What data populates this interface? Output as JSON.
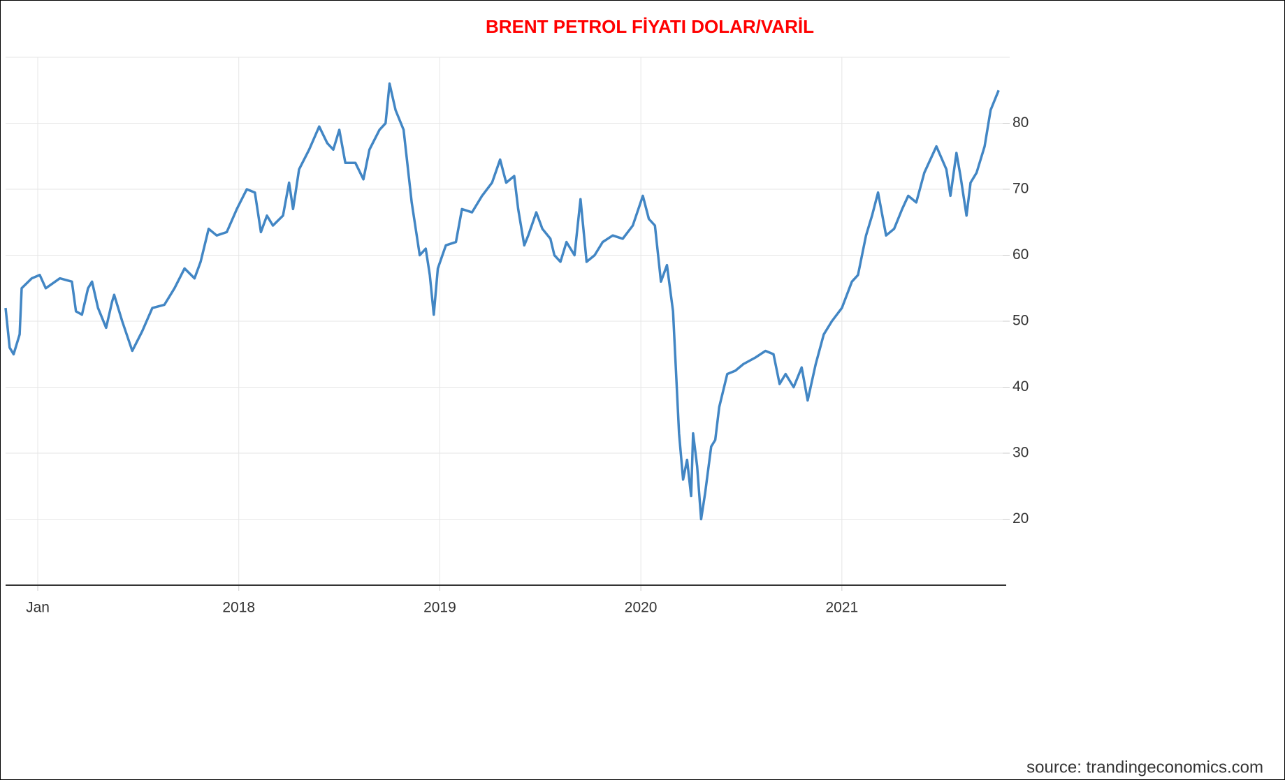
{
  "chart_data": {
    "type": "line",
    "title": "BRENT PETROL FİYATI DOLAR/VARİL",
    "source": "source: trandingeconomics.com",
    "x": [
      2016.84,
      2016.86,
      2016.88,
      2016.91,
      2016.92,
      2016.97,
      2017.01,
      2017.04,
      2017.11,
      2017.17,
      2017.19,
      2017.22,
      2017.25,
      2017.27,
      2017.3,
      2017.34,
      2017.37,
      2017.38,
      2017.42,
      2017.47,
      2017.52,
      2017.57,
      2017.63,
      2017.68,
      2017.73,
      2017.78,
      2017.81,
      2017.85,
      2017.89,
      2017.94,
      2017.99,
      2018.04,
      2018.08,
      2018.11,
      2018.14,
      2018.17,
      2018.22,
      2018.25,
      2018.27,
      2018.3,
      2018.35,
      2018.4,
      2018.44,
      2018.47,
      2018.5,
      2018.53,
      2018.58,
      2018.62,
      2018.65,
      2018.7,
      2018.73,
      2018.75,
      2018.78,
      2018.82,
      2018.86,
      2018.9,
      2018.93,
      2018.95,
      2018.97,
      2018.99,
      2019.03,
      2019.08,
      2019.11,
      2019.16,
      2019.21,
      2019.26,
      2019.3,
      2019.33,
      2019.37,
      2019.39,
      2019.42,
      2019.44,
      2019.48,
      2019.51,
      2019.55,
      2019.57,
      2019.6,
      2019.63,
      2019.67,
      2019.7,
      2019.73,
      2019.77,
      2019.81,
      2019.86,
      2019.91,
      2019.96,
      2020.01,
      2020.04,
      2020.07,
      2020.1,
      2020.13,
      2020.16,
      2020.19,
      2020.21,
      2020.23,
      2020.25,
      2020.26,
      2020.28,
      2020.3,
      2020.32,
      2020.35,
      2020.37,
      2020.39,
      2020.43,
      2020.47,
      2020.51,
      2020.57,
      2020.62,
      2020.66,
      2020.69,
      2020.72,
      2020.76,
      2020.8,
      2020.83,
      2020.87,
      2020.91,
      2020.95,
      2021.0,
      2021.05,
      2021.08,
      2021.12,
      2021.15,
      2021.18,
      2021.22,
      2021.26,
      2021.3,
      2021.33,
      2021.37,
      2021.41,
      2021.47,
      2021.52,
      2021.54,
      2021.57,
      2021.59,
      2021.62,
      2021.64,
      2021.67,
      2021.71,
      2021.74,
      2021.78
    ],
    "series": [
      {
        "name": "Brent",
        "color": "#4286c4",
        "values": [
          52,
          46,
          45,
          48,
          55,
          56.5,
          57,
          55,
          56.5,
          56,
          51.5,
          51,
          55,
          56,
          52,
          49,
          53,
          54,
          50,
          45.5,
          48.5,
          52,
          52.5,
          55,
          58,
          56.5,
          59,
          64,
          63,
          63.5,
          67,
          70,
          69.5,
          63.5,
          66,
          64.5,
          66,
          71,
          67,
          73,
          76,
          79.5,
          77,
          76,
          79,
          74,
          74,
          71.5,
          76,
          79,
          80,
          86,
          82,
          79,
          68,
          60,
          61,
          57,
          51,
          58,
          61.5,
          62,
          67,
          66.5,
          69,
          71,
          74.5,
          71,
          72,
          67,
          61.5,
          63,
          66.5,
          64,
          62.5,
          60,
          59,
          62,
          60,
          68.5,
          59,
          60,
          62,
          63,
          62.5,
          64.5,
          69,
          65.5,
          64.5,
          56,
          58.5,
          51.5,
          33,
          26,
          29,
          23.5,
          33,
          28,
          20,
          24,
          31,
          32,
          37,
          42,
          42.5,
          43.5,
          44.5,
          45.5,
          45,
          40.5,
          42,
          40,
          43,
          38,
          43.5,
          48,
          50,
          52,
          56,
          57,
          63,
          66,
          69.5,
          63,
          64,
          67,
          69,
          68,
          72.5,
          76.5,
          73,
          69,
          75.5,
          72,
          66,
          71,
          72.5,
          76.5,
          82,
          85
        ]
      }
    ],
    "xlim": [
      2016.84,
      2021.8
    ],
    "xticks": [
      {
        "value": 2017,
        "label": "Jan"
      },
      2018,
      2019,
      2020,
      2021
    ],
    "ylim": [
      10,
      90
    ],
    "yticks": [
      20,
      30,
      40,
      50,
      60,
      70,
      80
    ],
    "grid": true
  }
}
